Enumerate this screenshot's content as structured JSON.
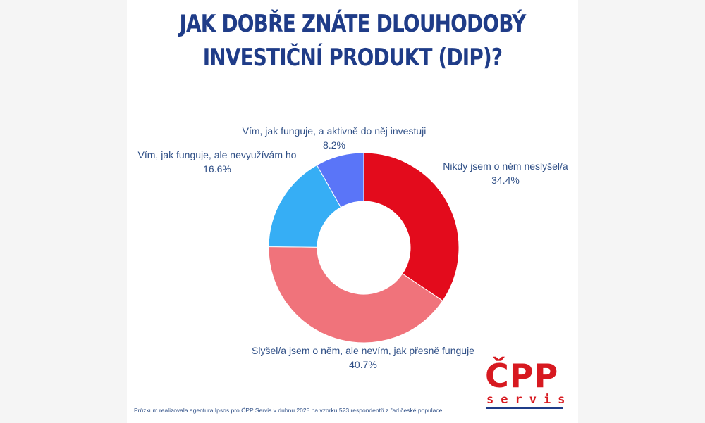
{
  "chart_data": {
    "type": "pie",
    "donut": true,
    "title_lines": [
      "JAK DOBŘE ZNÁTE DLOUHODOBÝ",
      "INVESTIČNÍ PRODUKT (DIP)?"
    ],
    "slices": [
      {
        "label": "Nikdy jsem o něm neslyšel/a",
        "value": 34.4,
        "display": "34.4%",
        "color": "#e30b1c"
      },
      {
        "label": "Slyšel/a jsem o něm, ale nevím, jak přesně funguje",
        "value": 40.7,
        "display": "40.7%",
        "color": "#f0737b"
      },
      {
        "label": "Vím, jak funguje, ale nevyužívám ho",
        "value": 16.6,
        "display": "16.6%",
        "color": "#36aef5"
      },
      {
        "label": "Vím, jak funguje, a aktivně do něj investuji",
        "value": 8.2,
        "display": "8.2%",
        "color": "#5a75f8"
      }
    ]
  },
  "footnote": "Průzkum realizovala agentura Ipsos pro ČPP Servis v dubnu 2025 na vzorku 523 respondentů z řad české populace.",
  "logo": {
    "main": "ČPP",
    "sub": "servis"
  }
}
